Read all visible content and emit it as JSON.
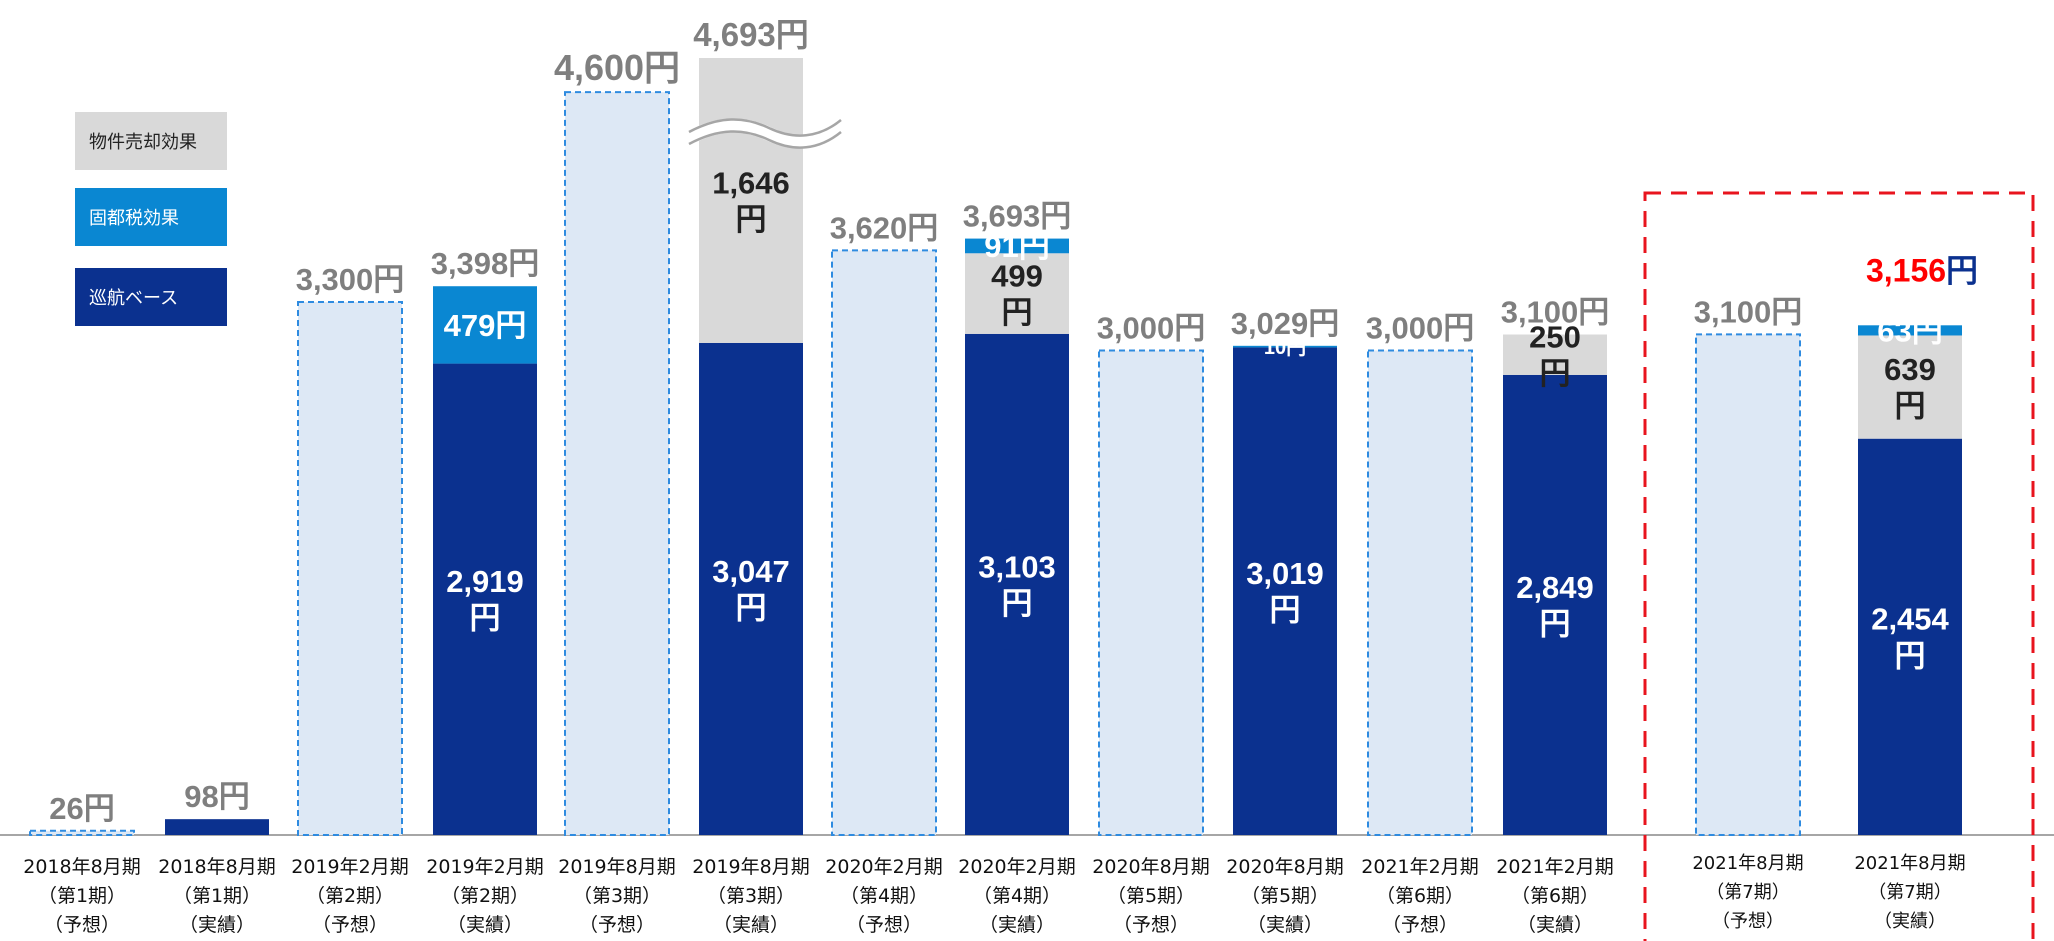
{
  "chart_data": {
    "type": "bar",
    "stacked": true,
    "unit": "円",
    "legend": [
      {
        "key": "property",
        "label": "物件売却効果",
        "color": "#D9D9D9",
        "text_color": "#222222"
      },
      {
        "key": "tax",
        "label": "固都税効果",
        "color": "#0A87D2",
        "text_color": "#ffffff"
      },
      {
        "key": "base",
        "label": "巡航ベース",
        "color": "#0B318F",
        "text_color": "#ffffff"
      }
    ],
    "forecast_style": {
      "fill": "#DDE8F5",
      "border": "#2E8BE0"
    },
    "bars": [
      {
        "period": "2018年8月期",
        "term": "（第1期）",
        "kind": "（予想）",
        "forecast": true,
        "total": 26,
        "total_label": "26円"
      },
      {
        "period": "2018年8月期",
        "term": "（第1期）",
        "kind": "（実績）",
        "forecast": false,
        "total": 98,
        "total_label": "98円",
        "segments": [
          {
            "key": "base",
            "value": 98,
            "label": ""
          }
        ]
      },
      {
        "period": "2019年2月期",
        "term": "（第2期）",
        "kind": "（予想）",
        "forecast": true,
        "total": 3300,
        "total_label": "3,300円"
      },
      {
        "period": "2019年2月期",
        "term": "（第2期）",
        "kind": "（実績）",
        "forecast": false,
        "total": 3398,
        "total_label": "3,398円",
        "segments": [
          {
            "key": "base",
            "value": 2919,
            "label": "2,919\n円"
          },
          {
            "key": "tax",
            "value": 479,
            "label": "479円"
          }
        ]
      },
      {
        "period": "2019年8月期",
        "term": "（第3期）",
        "kind": "（予想）",
        "forecast": true,
        "total": 4600,
        "total_label": "4,600円"
      },
      {
        "period": "2019年8月期",
        "term": "（第3期）",
        "kind": "（実績）",
        "forecast": false,
        "total": 4693,
        "total_label": "4,693円",
        "axis_break": true,
        "segments": [
          {
            "key": "base",
            "value": 3047,
            "label": "3,047\n円"
          },
          {
            "key": "property",
            "value": 1646,
            "label": "1,646\n円"
          }
        ]
      },
      {
        "period": "2020年2月期",
        "term": "（第4期）",
        "kind": "（予想）",
        "forecast": true,
        "total": 3620,
        "total_label": "3,620円"
      },
      {
        "period": "2020年2月期",
        "term": "（第4期）",
        "kind": "（実績）",
        "forecast": false,
        "total": 3693,
        "total_label": "3,693円",
        "segments": [
          {
            "key": "base",
            "value": 3103,
            "label": "3,103\n円"
          },
          {
            "key": "property",
            "value": 499,
            "label": "499\n円"
          },
          {
            "key": "tax",
            "value": 91,
            "label": "91円"
          }
        ]
      },
      {
        "period": "2020年8月期",
        "term": "（第5期）",
        "kind": "（予想）",
        "forecast": true,
        "total": 3000,
        "total_label": "3,000円"
      },
      {
        "period": "2020年8月期",
        "term": "（第5期）",
        "kind": "（実績）",
        "forecast": false,
        "total": 3029,
        "total_label": "3,029円",
        "segments": [
          {
            "key": "base",
            "value": 3019,
            "label": "3,019\n円"
          },
          {
            "key": "tax",
            "value": 10,
            "label": "10円"
          }
        ]
      },
      {
        "period": "2021年2月期",
        "term": "（第6期）",
        "kind": "（予想）",
        "forecast": true,
        "total": 3000,
        "total_label": "3,000円"
      },
      {
        "period": "2021年2月期",
        "term": "（第6期）",
        "kind": "（実績）",
        "forecast": false,
        "total": 3100,
        "total_label": "3,100円",
        "segments": [
          {
            "key": "base",
            "value": 2849,
            "label": "2,849\n円"
          },
          {
            "key": "property",
            "value": 250,
            "label": "250\n円"
          }
        ]
      },
      {
        "period": "2021年8月期",
        "term": "（第7期）",
        "kind": "（予想）",
        "forecast": true,
        "total": 3100,
        "total_label": "3,100円"
      },
      {
        "period": "2021年8月期",
        "term": "（第7期）",
        "kind": "（実績）",
        "forecast": false,
        "total": 3156,
        "total_label_number": "3,156",
        "total_label_unit": "円",
        "highlight": true,
        "segments": [
          {
            "key": "base",
            "value": 2454,
            "label": "2,454\n円"
          },
          {
            "key": "property",
            "value": 639,
            "label": "639\n円"
          },
          {
            "key": "tax",
            "value": 63,
            "label": "63円"
          }
        ]
      }
    ],
    "highlight_box_color": "#E8141E",
    "total_label_color": "#7F7F7F",
    "highlight_number_color": "#FF0000",
    "highlight_unit_color": "#0B318F"
  }
}
